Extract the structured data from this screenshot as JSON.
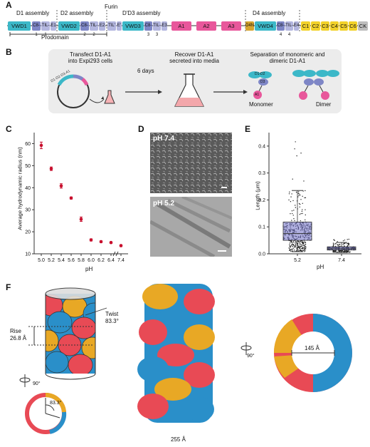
{
  "panelA": {
    "label": "A",
    "assemblies": [
      "D1 assembly",
      "D2 assembly",
      "Furin",
      "D'D3 assembly",
      "D4 assembly"
    ],
    "prodomain": "Prodomain",
    "domains": [
      {
        "name": "VWD1",
        "color": "#3cb8c8"
      },
      {
        "name": "C8-1",
        "color": "#7e86c6"
      },
      {
        "name": "TIL-1",
        "color": "#b3b6df"
      },
      {
        "name": "E1",
        "color": "#b3b6df"
      },
      {
        "name": "VWD2",
        "color": "#3cb8c8"
      },
      {
        "name": "C8-2",
        "color": "#7e86c6"
      },
      {
        "name": "TIL-2",
        "color": "#b3b6df"
      },
      {
        "name": "E2",
        "color": "#b3b6df"
      },
      {
        "name": "TIL'",
        "color": "#b3b6df"
      },
      {
        "name": "E'",
        "color": "#b3b6df"
      },
      {
        "name": "VWD3",
        "color": "#3cb8c8"
      },
      {
        "name": "C8-3",
        "color": "#7e86c6"
      },
      {
        "name": "TIL-3",
        "color": "#b3b6df"
      },
      {
        "name": "E3",
        "color": "#b3b6df"
      },
      {
        "name": "A1",
        "color": "#e8579b"
      },
      {
        "name": "A2",
        "color": "#e8579b"
      },
      {
        "name": "A3",
        "color": "#e8579b"
      },
      {
        "name": "D4N",
        "color": "#d7a52f"
      },
      {
        "name": "VWD4",
        "color": "#3cb8c8"
      },
      {
        "name": "C8-4",
        "color": "#7e86c6"
      },
      {
        "name": "TIL-4",
        "color": "#b3b6df"
      },
      {
        "name": "E4",
        "color": "#b3b6df"
      },
      {
        "name": "C1",
        "color": "#f2d12a"
      },
      {
        "name": "C2",
        "color": "#f2d12a"
      },
      {
        "name": "C3",
        "color": "#f2d12a"
      },
      {
        "name": "C4",
        "color": "#f2d12a"
      },
      {
        "name": "C5",
        "color": "#f2d12a"
      },
      {
        "name": "C6",
        "color": "#f2d12a"
      },
      {
        "name": "CK",
        "color": "#bdbdbd"
      }
    ]
  },
  "panelB": {
    "label": "B",
    "step1": "Transfect D1-A1\ninto Expi293 cells",
    "days": "6 days",
    "step2": "Recover D1-A1\nsecreted into media",
    "step3": "Separation of monomeric and\ndimeric D1-A1",
    "plasmid": "D1-D2-D3-A1",
    "monomer": "Monomer",
    "dimer": "Dimer",
    "schematic_labels": [
      "D1-D2",
      "D3",
      "A1"
    ]
  },
  "panelC": {
    "label": "C",
    "chart_data": {
      "type": "scatter",
      "x": [
        "5.0",
        "5.2",
        "5.4",
        "5.6",
        "5.8",
        "6.0",
        "6.2",
        "6.4",
        "7.4"
      ],
      "y": [
        59.2,
        48.6,
        40.8,
        35.3,
        25.7,
        16.3,
        15.5,
        15.1,
        13.7
      ],
      "err": [
        1.5,
        0.8,
        1.0,
        0.5,
        1.0,
        0.5,
        0.4,
        0.4,
        0.4
      ],
      "xlabel": "pH",
      "ylabel": "Average hydrodynamic radius (nm)",
      "yticks": [
        10,
        20,
        30,
        40,
        50,
        60
      ],
      "ylim": [
        10,
        65
      ],
      "color": "#c8102e"
    }
  },
  "panelD": {
    "label": "D",
    "img1": "pH 7.4",
    "img2": "pH 5.2"
  },
  "panelE": {
    "label": "E",
    "chart_data": {
      "type": "box",
      "categories": [
        "5.2",
        "7.4"
      ],
      "xlabel": "pH",
      "ylabel": "Length (μm)",
      "yticks": [
        "0.0",
        "0.1",
        "0.2",
        "0.3",
        "0.4"
      ],
      "ylim": [
        0,
        0.45
      ],
      "boxes": [
        {
          "q1": 0.05,
          "median": 0.075,
          "q3": 0.118,
          "lo": 0.008,
          "hi": 0.235,
          "max": 0.44
        },
        {
          "q1": 0.014,
          "median": 0.019,
          "q3": 0.026,
          "lo": 0.005,
          "hi": 0.042,
          "max": 0.055
        }
      ],
      "color": "#6d6ec4"
    }
  },
  "panelF": {
    "label": "F",
    "twist": "Twist",
    "twist_val": "83.3°",
    "rise": "Rise",
    "rise_val": "26.8 Å",
    "rot90": "90°",
    "angle": "83.3°",
    "width": "255 Å",
    "rot90b": "90°",
    "inner": "145 Å",
    "colors": {
      "blue": "#2a8fc9",
      "red": "#e84a55",
      "orange": "#e8a825"
    }
  }
}
